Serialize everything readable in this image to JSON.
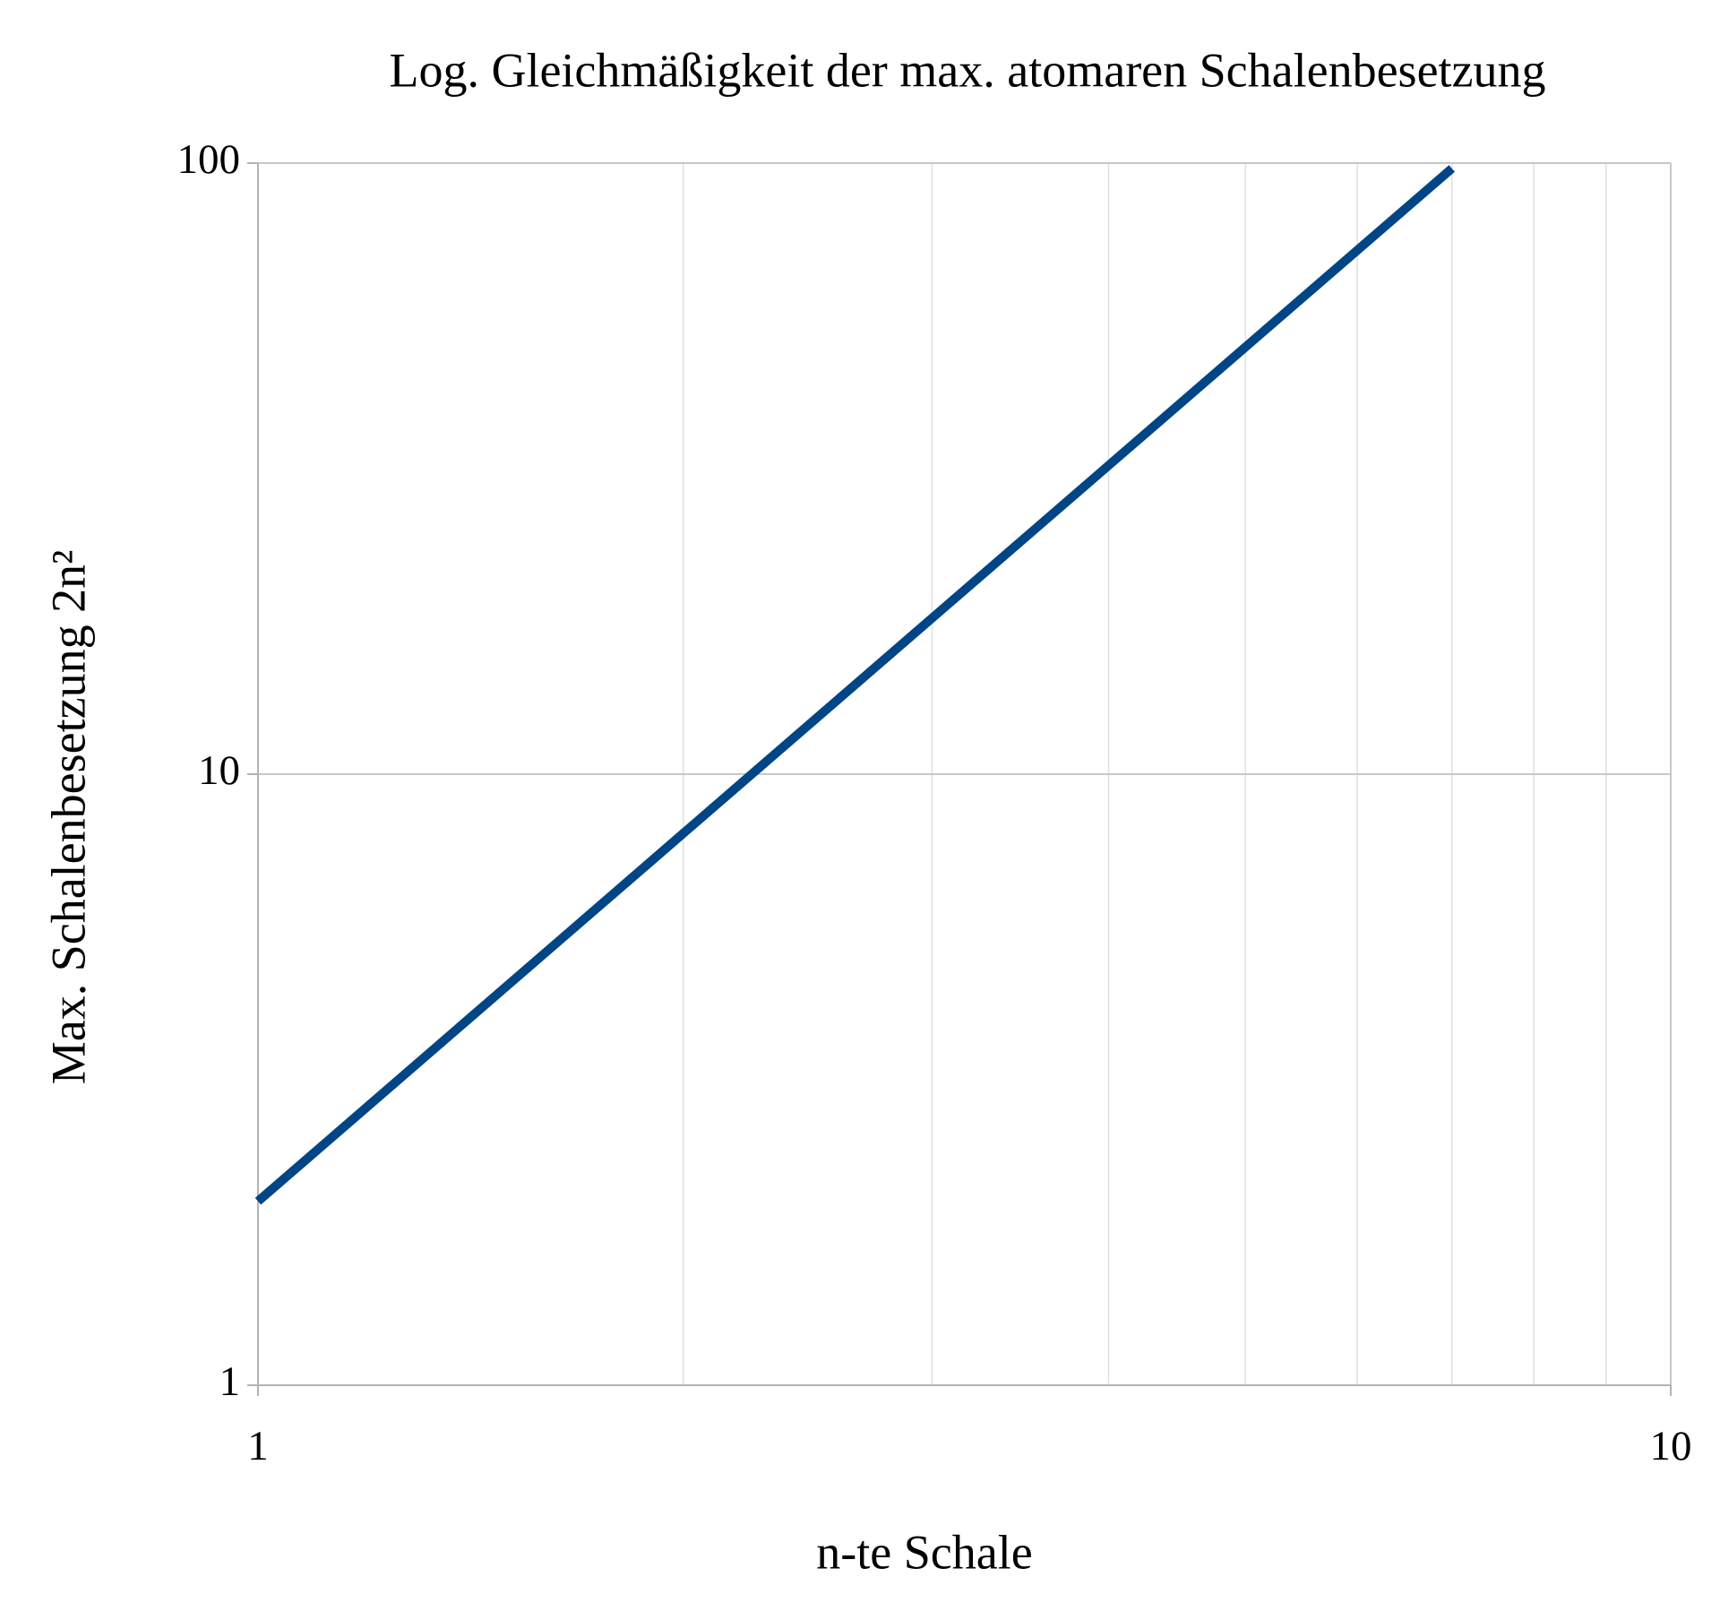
{
  "chart_data": {
    "type": "line",
    "title": "Log. Gleichmäßigkeit der max. atomaren Schalenbesetzung",
    "x_label": "n-te Schale",
    "y_label": "Max. Schalenbesetzung 2n²",
    "x": [
      1,
      2,
      3,
      4,
      5,
      6,
      7
    ],
    "series": [
      {
        "name": "2n²",
        "color": "#004586",
        "values": [
          2,
          8,
          18,
          32,
          50,
          72,
          98
        ]
      }
    ],
    "xlim": [
      1,
      10
    ],
    "xticks": [
      1,
      10
    ],
    "ylim": [
      1,
      100
    ],
    "yticks": [
      1,
      10,
      100
    ],
    "xscale": "log",
    "yscale": "log",
    "grid": true,
    "x_minor_grid": true,
    "legend": false
  }
}
